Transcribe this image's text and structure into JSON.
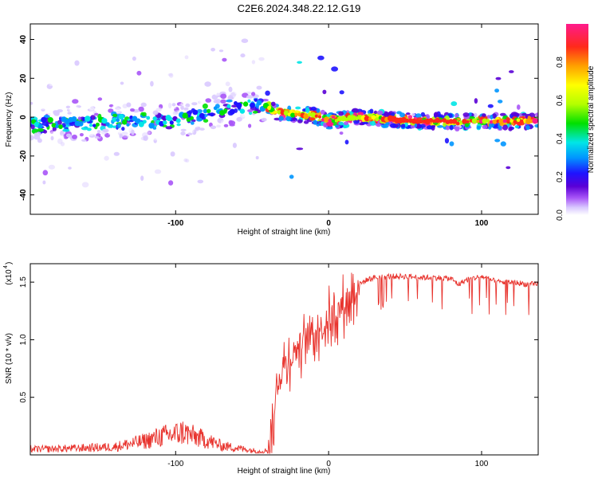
{
  "title": "C2E6.2024.348.22.12.G19",
  "colors": {
    "snr_line": "#e8322c",
    "axis": "#000000",
    "colormap": [
      "#ffffff",
      "#d9c9ff",
      "#a855f7",
      "#5a00d6",
      "#1e14ff",
      "#0096ff",
      "#00e6e6",
      "#00e000",
      "#b4ff00",
      "#ffff00",
      "#ffa000",
      "#ff2a1a",
      "#ff1a8c"
    ]
  },
  "chart_data": [
    {
      "type": "heatmap",
      "title": "",
      "xlabel": "Height of straight line (km)",
      "ylabel": "Frequency (Hz)",
      "xlim": [
        -195,
        137
      ],
      "ylim": [
        -50,
        48
      ],
      "x_ticks": [
        -100,
        0,
        100
      ],
      "x_tick_labels": [
        "-100",
        "0",
        "100"
      ],
      "y_ticks": [
        -40,
        -20,
        0,
        20,
        40
      ],
      "y_tick_labels": [
        "-40",
        "-20",
        "0",
        "20",
        "40"
      ],
      "ridge_frequency_hz": {
        "x": [
          -195,
          -160,
          -130,
          -110,
          -100,
          -90,
          -80,
          -70,
          -60,
          -50,
          -45,
          -40,
          -35,
          -30,
          -20,
          -10,
          0,
          10,
          20,
          40,
          60,
          80,
          85,
          90,
          100,
          137
        ],
        "y": [
          -4,
          -3,
          -2,
          -3,
          -2,
          0,
          2,
          4,
          5,
          6,
          7,
          6,
          3,
          2,
          1,
          1,
          -2,
          -1,
          0,
          -1,
          -2,
          -2,
          -3,
          -2,
          -2,
          -2
        ]
      },
      "colorbar": {
        "label": "Normalized spectral amplitude",
        "range": [
          0,
          1
        ],
        "ticks": [
          0.0,
          0.2,
          0.4,
          0.6,
          0.8
        ],
        "tick_labels": [
          "0.0",
          "0.2",
          "0.4",
          "0.6",
          "0.8"
        ]
      }
    },
    {
      "type": "line",
      "title": "",
      "xlabel": "Height of straight line (km)",
      "ylabel": "SNR (10 * v/v)",
      "y_multiplier_label": "(x10",
      "y_multiplier_exp": "4",
      "xlim": [
        -195,
        137
      ],
      "ylim": [
        0,
        16600
      ],
      "x_ticks": [
        -100,
        0,
        100
      ],
      "x_tick_labels": [
        "-100",
        "0",
        "100"
      ],
      "y_ticks": [
        5000,
        10000,
        15000
      ],
      "y_tick_labels": [
        "0.5",
        "1.0",
        "1.5"
      ],
      "series": [
        {
          "x": [
            -195,
            -180,
            -160,
            -140,
            -120,
            -110,
            -100,
            -95,
            -90,
            -80,
            -70,
            -60,
            -50,
            -45,
            -40,
            -37,
            -35,
            -33,
            -30,
            -28,
            -25,
            -22,
            -20,
            -17,
            -15,
            -12,
            -10,
            -5,
            0,
            5,
            10,
            15,
            20,
            25,
            30,
            40,
            50,
            60,
            70,
            80,
            85,
            90,
            100,
            110,
            120,
            130,
            137
          ],
          "values": [
            500,
            520,
            600,
            700,
            1200,
            1600,
            1800,
            2000,
            1700,
            1300,
            800,
            600,
            400,
            300,
            400,
            1200,
            4500,
            6500,
            7500,
            8000,
            8500,
            9000,
            9300,
            9700,
            9800,
            10200,
            10600,
            11000,
            11800,
            12300,
            13000,
            13800,
            14800,
            15200,
            15400,
            15500,
            15500,
            15400,
            15400,
            15300,
            14800,
            15200,
            15500,
            15000,
            15000,
            14800,
            14800
          ]
        }
      ]
    }
  ]
}
